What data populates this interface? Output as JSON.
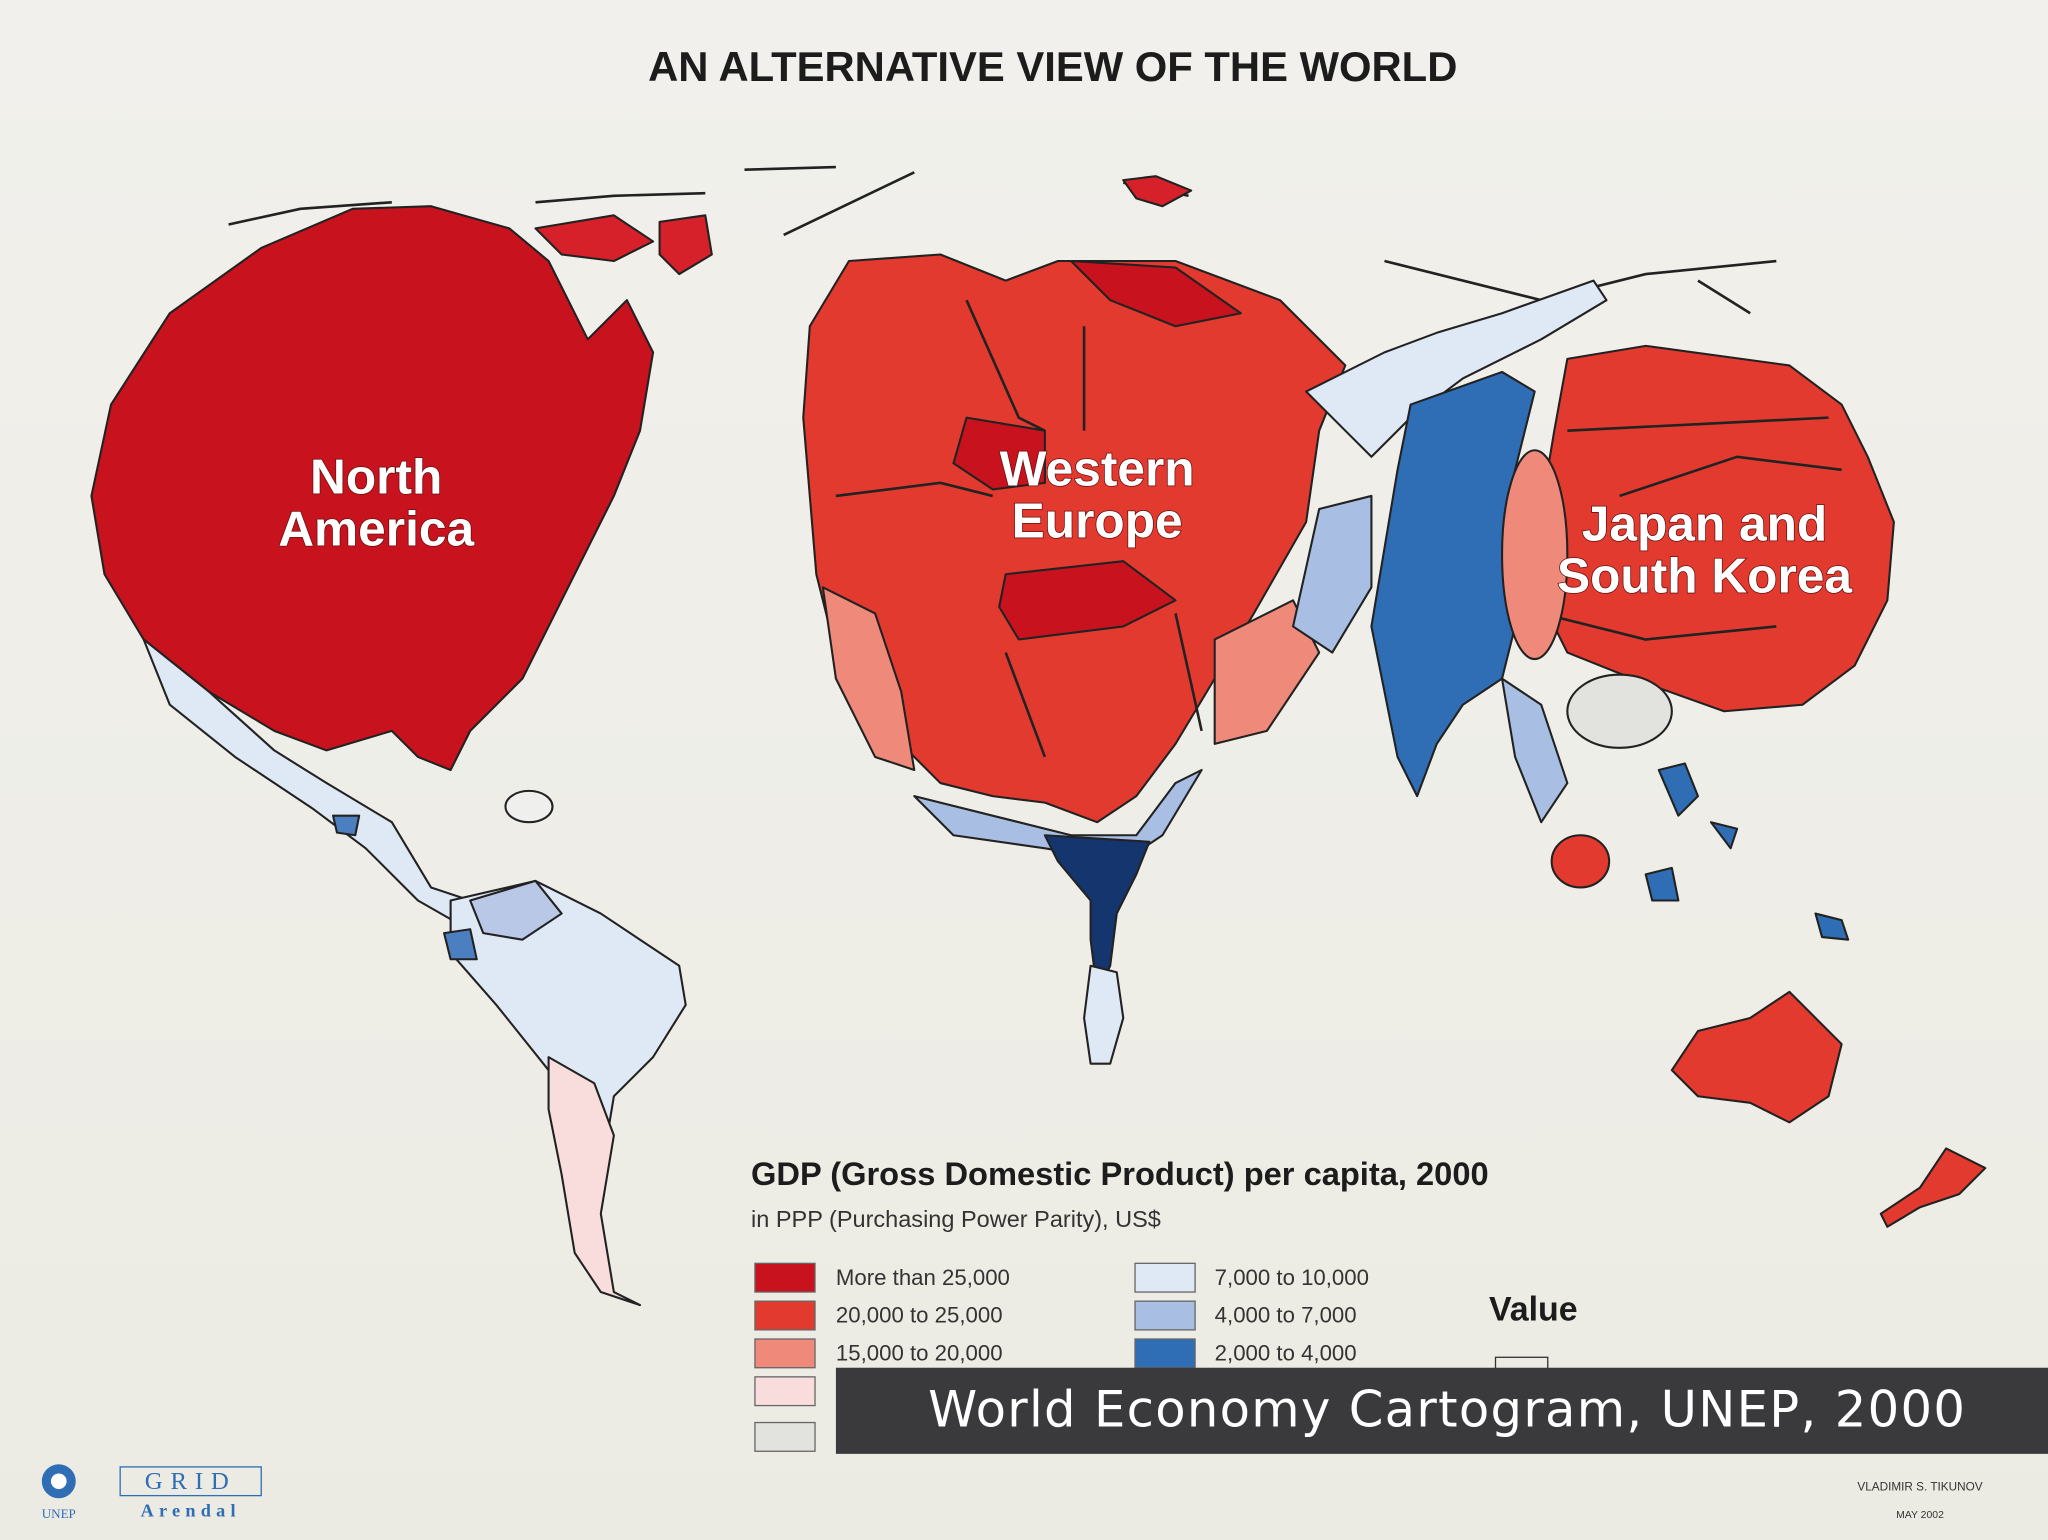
{
  "title": "AN ALTERNATIVE VIEW OF THE WORLD",
  "regions": [
    {
      "lines": [
        "North",
        "America"
      ]
    },
    {
      "lines": [
        "Western",
        "Europe"
      ]
    },
    {
      "lines": [
        "Japan and",
        "South Korea"
      ]
    }
  ],
  "legend": {
    "title": "GDP (Gross Domestic Product) per capita, 2000",
    "subtitle": "in PPP (Purchasing Power Parity), US$",
    "items": [
      "More than 25,000",
      "20,000 to 25,000",
      "15,000 to 20,000",
      "7,000 to 10,000",
      "4,000 to 7,000",
      "2,000 to 4,000"
    ],
    "value_title": "Value"
  },
  "caption": "World Economy Cartogram, UNEP, 2000",
  "credits": {
    "author": "VLADIMIR S. TIKUNOV",
    "date": "MAY 2002",
    "logos": [
      "UNEP",
      "GRID",
      "Arendal"
    ]
  }
}
